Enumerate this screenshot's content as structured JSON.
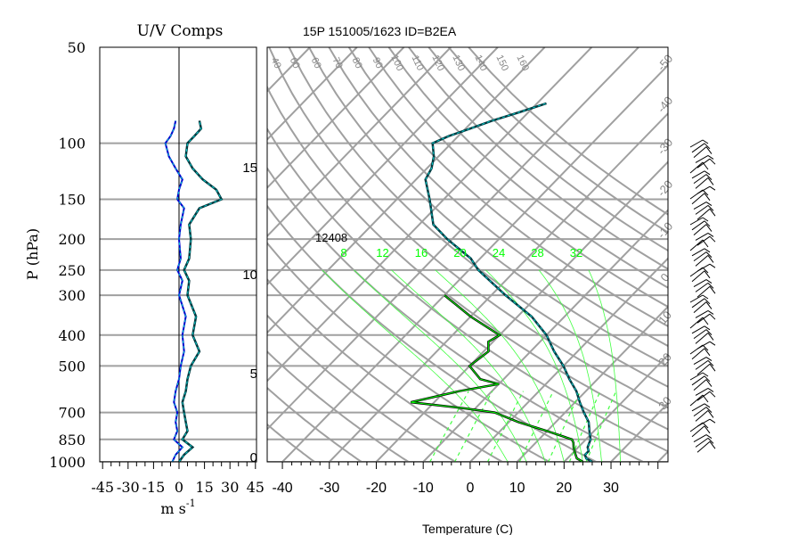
{
  "title": "15P 151005/1623 ID=B2EA",
  "uv_panel": {
    "title": "U/V Comps",
    "xlabel": "m  s",
    "xlabel_exp": "-1",
    "xticks": [
      "-45",
      "-30",
      "-15",
      "0",
      "15",
      "30",
      "45"
    ]
  },
  "skewt": {
    "xlabel": "Temperature (C)",
    "xticks": [
      "-40",
      "-30",
      "-20",
      "-10",
      "0",
      "10",
      "20",
      "30"
    ],
    "height_ticks": [
      "0",
      "5",
      "10",
      "15"
    ],
    "height_label": "12408",
    "mixing_labels": [
      "8",
      "12",
      "16",
      "20",
      "24",
      "28",
      "32"
    ],
    "theta_labels": [
      "40",
      "60",
      "60",
      "70",
      "80",
      "90",
      "100",
      "110",
      "120",
      "130",
      "140",
      "150",
      "160"
    ],
    "iso_labels": [
      "-50",
      "-40",
      "-30",
      "-20",
      "-10",
      "0",
      "10",
      "20",
      "30"
    ]
  },
  "pressure_axis": {
    "label": "P (hPa)",
    "ticks": [
      "50",
      "100",
      "150",
      "200",
      "250",
      "300",
      "400",
      "500",
      "700",
      "850",
      "1000"
    ]
  },
  "colors": {
    "grid": "#a0a0a0",
    "temperature": "#003a40",
    "temperature_accent": "#00cccc",
    "dewpoint": "#006000",
    "dewpoint_accent": "#00ff00",
    "mixing_ratio": "#40ff40",
    "u_wind": "#003a40",
    "v_wind": "#0000cc"
  },
  "chart_data": [
    {
      "type": "line",
      "title": "U/V Comps",
      "xlabel": "m s-1",
      "ylabel": "P (hPa)",
      "xlim": [
        -45,
        45
      ],
      "ylim": [
        1000,
        50
      ],
      "y_scale": "log",
      "series": [
        {
          "pressure": [
            1000,
            950,
            900,
            850,
            800,
            750,
            700,
            650,
            600,
            550,
            500,
            450,
            400,
            350,
            300,
            270,
            250,
            230,
            200,
            180,
            160,
            150,
            140,
            130,
            120,
            110,
            100,
            95,
            90,
            85
          ],
          "values": [
            0,
            3,
            8,
            2,
            5,
            4,
            3,
            2,
            4,
            5,
            7,
            12,
            8,
            10,
            5,
            6,
            3,
            6,
            7,
            6,
            12,
            25,
            22,
            14,
            8,
            4,
            5,
            9,
            13,
            12
          ]
        },
        {
          "pressure": [
            1000,
            950,
            900,
            850,
            800,
            750,
            700,
            650,
            600,
            550,
            500,
            450,
            400,
            350,
            300,
            270,
            250,
            230,
            200,
            180,
            160,
            150,
            140,
            130,
            120,
            110,
            100,
            95,
            90,
            85
          ],
          "values": [
            -4,
            -2,
            2,
            -3,
            -1,
            -2,
            -1,
            -3,
            -2,
            0,
            1,
            3,
            2,
            4,
            0,
            2,
            -1,
            1,
            0,
            1,
            3,
            -1,
            0,
            2,
            -2,
            -6,
            -8,
            -5,
            -3,
            -2
          ]
        }
      ]
    },
    {
      "type": "line",
      "xlabel": "Temperature (C)",
      "ylabel": "P (hPa)",
      "xlim": [
        -43,
        40
      ],
      "ylim": [
        1000,
        50
      ],
      "y_scale": "log",
      "series": [
        {
          "pressure": [
            1000,
            975,
            950,
            925,
            900,
            850,
            800,
            750,
            700,
            650,
            600,
            550,
            500,
            450,
            400,
            350,
            300,
            250,
            230,
            200,
            180,
            150,
            130,
            120,
            110,
            100,
            95,
            90,
            85,
            80,
            75
          ],
          "values": [
            26,
            24,
            23,
            23,
            22,
            21,
            19,
            17,
            14,
            11,
            8,
            4,
            0,
            -5,
            -10,
            -17,
            -27,
            -38,
            -42,
            -51,
            -57,
            -63,
            -68,
            -69,
            -71,
            -74,
            -72,
            -69,
            -66,
            -62,
            -58
          ]
        },
        {
          "pressure": [
            1000,
            975,
            950,
            925,
            900,
            870,
            850,
            800,
            750,
            700,
            680,
            650,
            600,
            570,
            550,
            500,
            450,
            420,
            400,
            350,
            300
          ],
          "values": [
            24,
            22,
            21,
            20,
            19,
            18,
            17,
            10,
            2,
            -5,
            -12,
            -25,
            -17,
            -10,
            -15,
            -20,
            -19,
            -21,
            -20,
            -30,
            -40
          ]
        }
      ]
    }
  ]
}
